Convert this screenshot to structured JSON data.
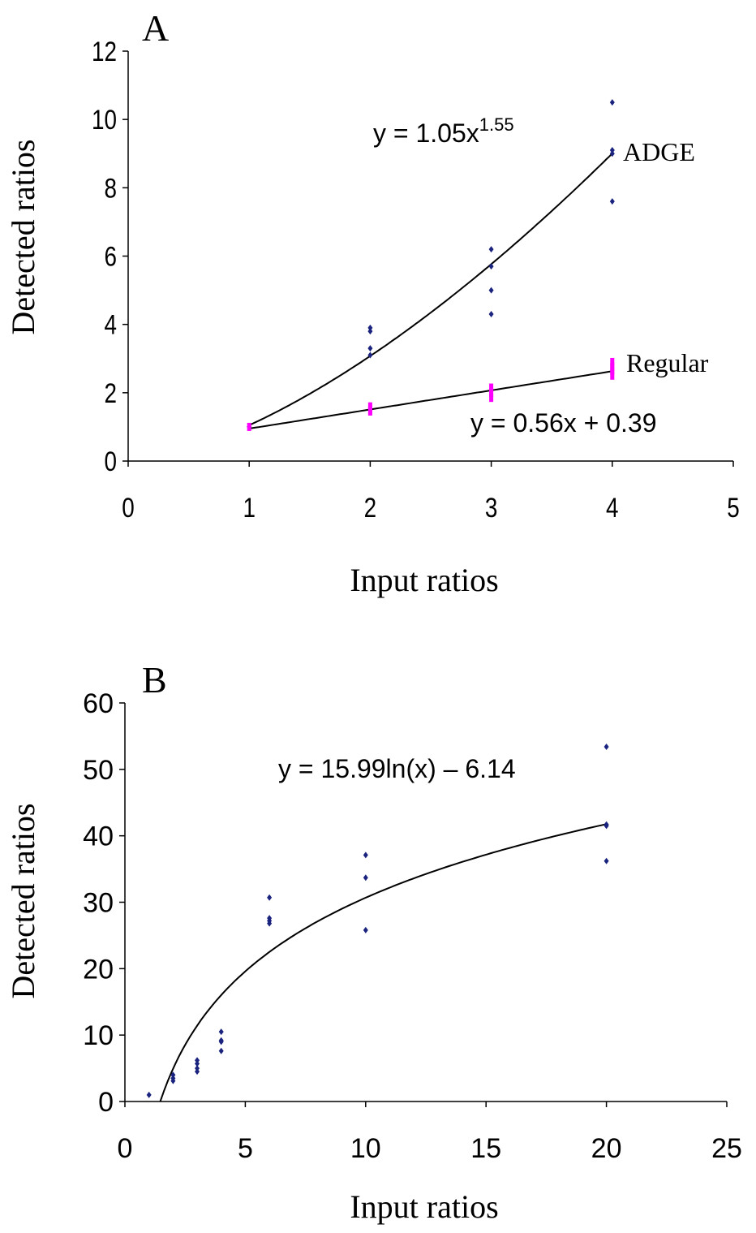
{
  "chart_data": [
    {
      "type": "scatter",
      "panel_label": "A",
      "xlabel": "Input ratios",
      "ylabel": "Detected ratios",
      "xlim": [
        0,
        5
      ],
      "ylim": [
        0,
        12
      ],
      "x_ticks": [
        "0",
        "1",
        "2",
        "3",
        "4",
        "5"
      ],
      "y_ticks": [
        "0",
        "2",
        "4",
        "6",
        "8",
        "10",
        "12"
      ],
      "grid": false,
      "series": [
        {
          "name": "ADGE",
          "color": "#1a237e",
          "marker": "diamond",
          "points": [
            [
              1,
              1.0
            ],
            [
              2,
              3.1
            ],
            [
              2,
              3.3
            ],
            [
              2,
              3.8
            ],
            [
              2,
              3.9
            ],
            [
              3,
              4.3
            ],
            [
              3,
              5.0
            ],
            [
              3,
              5.7
            ],
            [
              3,
              6.2
            ],
            [
              4,
              7.6
            ],
            [
              4,
              9.0
            ],
            [
              4,
              9.1
            ],
            [
              4,
              10.5
            ]
          ],
          "fit": {
            "kind": "power",
            "a": 1.05,
            "b": 1.55,
            "xrange": [
              1,
              4
            ],
            "equation": "y = 1.05x",
            "exponent": "1.55"
          }
        },
        {
          "name": "Regular",
          "color": "#ff00ff",
          "marker": "square",
          "points": [
            [
              1,
              1.0
            ],
            [
              2,
              1.45
            ],
            [
              2,
              1.5
            ],
            [
              2,
              1.6
            ],
            [
              3,
              1.85
            ],
            [
              3,
              2.0
            ],
            [
              3,
              2.15
            ],
            [
              4,
              2.5
            ],
            [
              4,
              2.65
            ],
            [
              4,
              2.75
            ],
            [
              4,
              2.9
            ]
          ],
          "fit": {
            "kind": "linear",
            "m": 0.56,
            "c": 0.39,
            "xrange": [
              1,
              4
            ],
            "equation": "y = 0.56x + 0.39"
          }
        }
      ]
    },
    {
      "type": "scatter",
      "panel_label": "B",
      "xlabel": "Input ratios",
      "ylabel": "Detected ratios",
      "xlim": [
        0,
        25
      ],
      "ylim": [
        0,
        60
      ],
      "x_ticks": [
        "0",
        "5",
        "10",
        "15",
        "20",
        "25"
      ],
      "y_ticks": [
        "0",
        "10",
        "20",
        "30",
        "40",
        "50",
        "60"
      ],
      "grid": false,
      "series": [
        {
          "color": "#1a237e",
          "marker": "diamond",
          "points": [
            [
              1,
              1.0
            ],
            [
              2,
              3.1
            ],
            [
              2,
              3.5
            ],
            [
              2,
              4.0
            ],
            [
              3,
              4.5
            ],
            [
              3,
              5.0
            ],
            [
              3,
              5.7
            ],
            [
              3,
              6.2
            ],
            [
              4,
              7.6
            ],
            [
              4,
              9.0
            ],
            [
              4,
              9.2
            ],
            [
              4,
              10.5
            ],
            [
              6,
              26.8
            ],
            [
              6,
              27.2
            ],
            [
              6,
              27.6
            ],
            [
              6,
              30.7
            ],
            [
              10,
              25.8
            ],
            [
              10,
              33.7
            ],
            [
              10,
              37.1
            ],
            [
              20,
              36.2
            ],
            [
              20,
              41.5
            ],
            [
              20,
              41.7
            ],
            [
              20,
              53.4
            ]
          ],
          "fit": {
            "kind": "log",
            "a": 15.99,
            "b": -6.14,
            "xrange": [
              1.47,
              20
            ],
            "equation": "y = 15.99ln(x) – 6.14"
          }
        }
      ]
    }
  ]
}
